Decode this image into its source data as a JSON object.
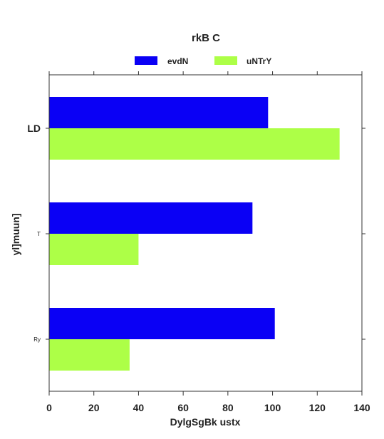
{
  "chart_data": {
    "type": "bar",
    "orientation": "horizontal",
    "title": "rkB C",
    "xlabel": "DylgSgBk ustx",
    "ylabel": "yl]muun]",
    "categories": [
      "LD",
      "T",
      "Ry"
    ],
    "series": [
      {
        "name": "evdN",
        "values": [
          98,
          91,
          101
        ],
        "color": "#0a00f5"
      },
      {
        "name": "uNTrY",
        "values": [
          130,
          40,
          36
        ],
        "color": "#adff47"
      }
    ],
    "xlim": [
      0,
      140
    ],
    "xticks": [
      0,
      20,
      40,
      60,
      80,
      100,
      120,
      140
    ],
    "grid": false,
    "legend_position": "top-center"
  }
}
